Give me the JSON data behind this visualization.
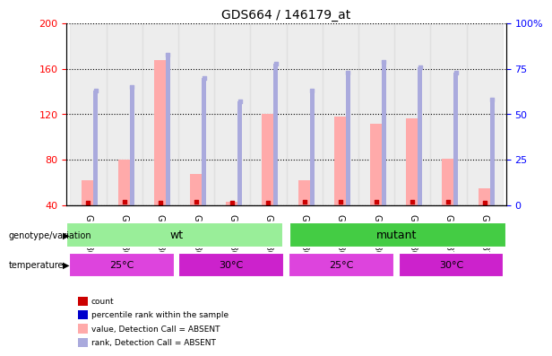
{
  "title": "GDS664 / 146179_at",
  "samples": [
    "GSM21864",
    "GSM21865",
    "GSM21866",
    "GSM21867",
    "GSM21868",
    "GSM21869",
    "GSM21860",
    "GSM21861",
    "GSM21862",
    "GSM21863",
    "GSM21870",
    "GSM21871"
  ],
  "absent_value": [
    62,
    80,
    168,
    67,
    43,
    120,
    62,
    118,
    112,
    116,
    81,
    55
  ],
  "absent_rank": [
    63,
    65,
    83,
    70,
    57,
    78,
    63,
    73,
    79,
    76,
    73,
    58
  ],
  "count_vals": [
    42,
    43,
    42,
    43,
    42,
    42,
    43,
    43,
    43,
    43,
    43,
    42
  ],
  "ylim_left": [
    40,
    200
  ],
  "ylim_right": [
    0,
    100
  ],
  "yticks_left": [
    40,
    80,
    120,
    160,
    200
  ],
  "yticks_right": [
    0,
    25,
    50,
    75,
    100
  ],
  "ytick_labels_left": [
    "40",
    "80",
    "120",
    "160",
    "200"
  ],
  "ytick_labels_right": [
    "0",
    "25",
    "50",
    "75",
    "100%"
  ],
  "color_count": "#cc0000",
  "color_rank": "#0000cc",
  "color_absent_value": "#ffaaaa",
  "color_absent_rank": "#aaaadd",
  "bar_bottom": 40,
  "color_wt": "#99ee99",
  "color_mutant": "#44cc44",
  "color_temp25": "#dd44dd",
  "color_temp30": "#cc22cc",
  "legend_items": [
    {
      "label": "count",
      "color": "#cc0000"
    },
    {
      "label": "percentile rank within the sample",
      "color": "#0000cc"
    },
    {
      "label": "value, Detection Call = ABSENT",
      "color": "#ffaaaa"
    },
    {
      "label": "rank, Detection Call = ABSENT",
      "color": "#aaaadd"
    }
  ],
  "bg_color": "#ffffff"
}
